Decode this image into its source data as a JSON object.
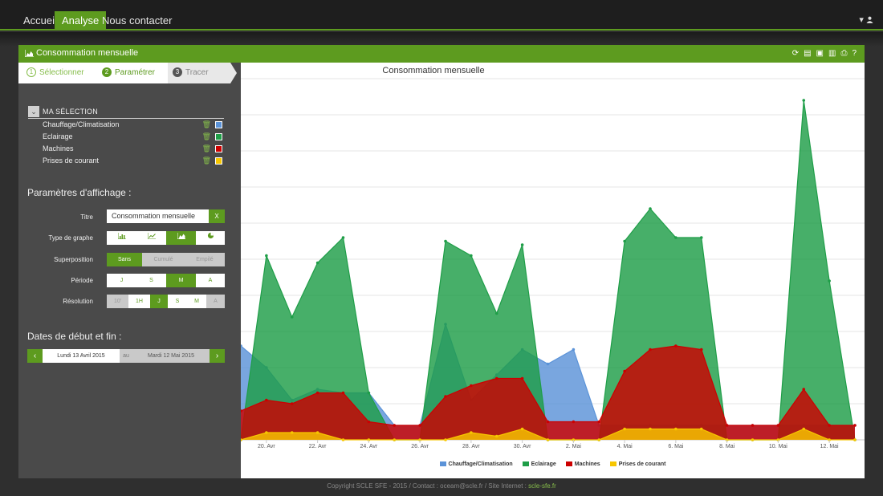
{
  "nav": {
    "items": [
      {
        "label": "Accueil",
        "active": false
      },
      {
        "label": "Analyse",
        "active": true
      },
      {
        "label": "Nous contacter",
        "active": false
      }
    ],
    "user_icon": "user-icon"
  },
  "panel": {
    "title": "Consommation mensuelle",
    "title_icon": "area-chart-icon",
    "tools": [
      "refresh-icon",
      "pdf-icon",
      "image-icon",
      "csv-icon",
      "print-icon",
      "help-icon"
    ],
    "help_label": "?"
  },
  "steps": [
    {
      "num": "1",
      "label": "Sélectionner"
    },
    {
      "num": "2",
      "label": "Paramétrer"
    },
    {
      "num": "3",
      "label": "Tracer"
    }
  ],
  "selection": {
    "header": "MA SÉLECTION",
    "items": [
      {
        "label": "Chauffage/Climatisation",
        "color": "#5b93d8"
      },
      {
        "label": "Eclairage",
        "color": "#1f9e48"
      },
      {
        "label": "Machines",
        "color": "#cc0000"
      },
      {
        "label": "Prises de courant",
        "color": "#f7c600"
      }
    ]
  },
  "params": {
    "title": "Paramètres d'affichage :",
    "titre_label": "Titre",
    "titre_value": "Consommation mensuelle",
    "clear_label": "X",
    "type_label": "Type de graphe",
    "type_options": [
      "bar-chart-icon",
      "line-chart-icon",
      "area-chart-icon",
      "pie-chart-icon"
    ],
    "type_selected": "area-chart-icon",
    "superposition_label": "Superposition",
    "superposition_options": [
      "Sans",
      "Cumulé",
      "Empilé"
    ],
    "superposition_selected": "Sans",
    "periode_label": "Période",
    "periode_options": [
      "J",
      "S",
      "M",
      "A"
    ],
    "periode_selected": "M",
    "resolution_label": "Résolution",
    "resolution_options": [
      "10'",
      "1H",
      "J",
      "S",
      "M",
      "A"
    ],
    "resolution_selected": "J"
  },
  "dates": {
    "title": "Dates de début et fin :",
    "start": "Lundi 13 Avril 2015",
    "sep": "au",
    "end": "Mardi 12 Mai 2015"
  },
  "footer": {
    "text": "Copyright SCLE SFE - 2015 / Contact : oceam@scle.fr / Site Internet : ",
    "link": "scle-sfe.fr"
  },
  "chart_data": {
    "type": "area",
    "title": "Consommation mensuelle",
    "x": [
      19,
      20,
      21,
      22,
      23,
      24,
      25,
      26,
      27,
      28,
      29,
      30,
      31,
      32,
      33,
      34,
      35,
      36,
      37,
      38,
      39,
      40,
      41,
      42,
      43
    ],
    "x_tick_labels": [
      {
        "x": 20,
        "label": "20. Avr"
      },
      {
        "x": 22,
        "label": "22. Avr"
      },
      {
        "x": 24,
        "label": "24. Avr"
      },
      {
        "x": 26,
        "label": "26. Avr"
      },
      {
        "x": 28,
        "label": "28. Avr"
      },
      {
        "x": 30,
        "label": "30. Avr"
      },
      {
        "x": 32,
        "label": "2. Mai"
      },
      {
        "x": 34,
        "label": "4. Mai"
      },
      {
        "x": 36,
        "label": "6. Mai"
      },
      {
        "x": 38,
        "label": "8. Mai"
      },
      {
        "x": 40,
        "label": "10. Mai"
      },
      {
        "x": 42,
        "label": "12. Mai"
      }
    ],
    "ylim": [
      0,
      100
    ],
    "grid": true,
    "legend_position": "bottom",
    "series": [
      {
        "name": "Chauffage/Climatisation",
        "color": "#5b93d8",
        "values": [
          26,
          20,
          11,
          14,
          13,
          13,
          4,
          4,
          32,
          11,
          18,
          25,
          21,
          25,
          4,
          4,
          4,
          4,
          4,
          4,
          4,
          4,
          4,
          4,
          4
        ]
      },
      {
        "name": "Eclairage",
        "color": "#1f9e48",
        "values": [
          0,
          51,
          34,
          49,
          56,
          13,
          0,
          0,
          55,
          51,
          35,
          54,
          0,
          0,
          0,
          55,
          64,
          56,
          56,
          0,
          0,
          0,
          94,
          44,
          0
        ]
      },
      {
        "name": "Machines",
        "color": "#cc0000",
        "values": [
          8,
          11,
          10,
          13,
          13,
          5,
          4,
          4,
          12,
          15,
          17,
          17,
          5,
          5,
          5,
          19,
          25,
          26,
          25,
          4,
          4,
          4,
          14,
          4,
          4
        ]
      },
      {
        "name": "Prises de courant",
        "color": "#f7c600",
        "values": [
          0,
          2,
          2,
          2,
          0,
          0,
          0,
          0,
          0,
          2,
          1,
          3,
          0,
          0,
          0,
          3,
          3,
          3,
          3,
          0,
          0,
          0,
          3,
          0,
          0
        ]
      }
    ]
  }
}
